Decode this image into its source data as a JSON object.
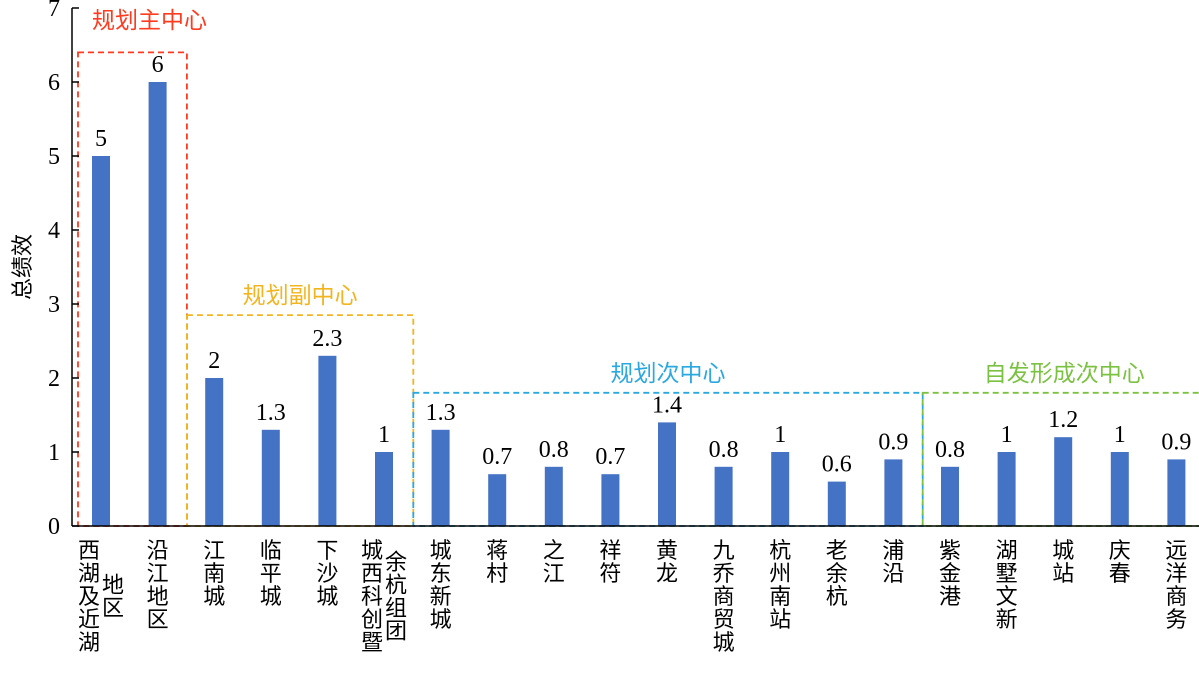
{
  "colors": {
    "bar": "#4472c4",
    "axis": "#000000"
  },
  "chart_data": {
    "type": "bar",
    "ylabel": "总绩效",
    "ylim": [
      0,
      7
    ],
    "yticks": [
      0,
      1,
      2,
      3,
      4,
      5,
      6,
      7
    ],
    "grid": false,
    "categories": [
      {
        "lines": [
          "西湖及近湖",
          "地区"
        ]
      },
      {
        "lines": [
          "沿江地区"
        ]
      },
      {
        "lines": [
          "江南城"
        ]
      },
      {
        "lines": [
          "临平城"
        ]
      },
      {
        "lines": [
          "下沙城"
        ]
      },
      {
        "lines": [
          "城西科创暨",
          "余杭组团"
        ]
      },
      {
        "lines": [
          "城东新城"
        ]
      },
      {
        "lines": [
          "蒋村"
        ]
      },
      {
        "lines": [
          "之江"
        ]
      },
      {
        "lines": [
          "祥符"
        ]
      },
      {
        "lines": [
          "黄龙"
        ]
      },
      {
        "lines": [
          "九乔商贸城"
        ]
      },
      {
        "lines": [
          "杭州南站"
        ]
      },
      {
        "lines": [
          "老余杭"
        ]
      },
      {
        "lines": [
          "浦沿"
        ]
      },
      {
        "lines": [
          "紫金港"
        ]
      },
      {
        "lines": [
          "湖墅文新"
        ]
      },
      {
        "lines": [
          "城站"
        ]
      },
      {
        "lines": [
          "庆春"
        ]
      },
      {
        "lines": [
          "远洋商务"
        ]
      }
    ],
    "values": [
      5,
      6,
      2,
      1.3,
      2.3,
      1,
      1.3,
      0.7,
      0.8,
      0.7,
      1.4,
      0.8,
      1,
      0.6,
      0.9,
      0.8,
      1,
      1.2,
      1,
      0.9
    ],
    "value_labels": [
      "5",
      "6",
      "2",
      "1.3",
      "2.3",
      "1",
      "1.3",
      "0.7",
      "0.8",
      "0.7",
      "1.4",
      "0.8",
      "1",
      "0.6",
      "0.9",
      "0.8",
      "1",
      "1.2",
      "1",
      "0.9"
    ],
    "groups": [
      {
        "label": "规划主中心",
        "color": "#ff3b1f",
        "start": 0,
        "end": 1,
        "top": 6.4
      },
      {
        "label": "规划副中心",
        "color": "#f2b522",
        "start": 2,
        "end": 5,
        "top": 2.85
      },
      {
        "label": "规划次中心",
        "color": "#2aa8e0",
        "start": 6,
        "end": 14,
        "top": 1.8
      },
      {
        "label": "自发形成次中心",
        "color": "#7cc242",
        "start": 15,
        "end": 19,
        "top": 1.8
      }
    ]
  }
}
